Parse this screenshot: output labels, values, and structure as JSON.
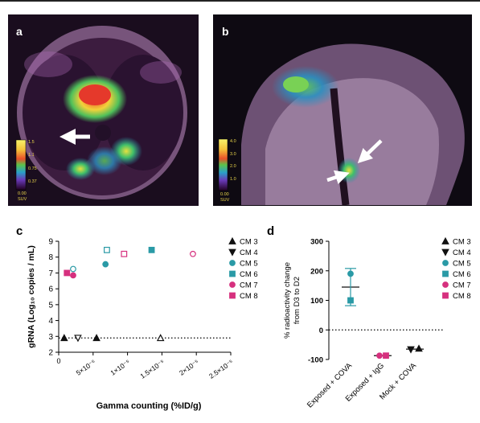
{
  "panels": {
    "a": {
      "letter": "a",
      "colorbar": {
        "ticks": [
          "1.5",
          "1.1",
          "0.75",
          "0.37",
          "0.00"
        ],
        "unit": "SUV"
      }
    },
    "b": {
      "letter": "b",
      "colorbar": {
        "ticks": [
          "4.0",
          "3.0",
          "2.0",
          "1.0",
          "0.00"
        ],
        "unit": "SUV"
      }
    },
    "c": {
      "letter": "c"
    },
    "d": {
      "letter": "d"
    }
  },
  "colors": {
    "cm3": "#111111",
    "cm4": "#111111",
    "cm5": "#2a9aa6",
    "cm6": "#2a9aa6",
    "cm7": "#d6307e",
    "cm8": "#d6307e"
  },
  "chart_data": [
    {
      "panel": "c",
      "type": "scatter",
      "xlabel": "Gamma counting (%ID/g)",
      "ylabel": "gRNA (Log₁₀ copies / mL)",
      "xlim": [
        0,
        2.5e-05
      ],
      "ylim": [
        2,
        9
      ],
      "xticks": [
        {
          "v": 0,
          "label": "0"
        },
        {
          "v": 5e-06,
          "label": "5×10⁻⁶"
        },
        {
          "v": 1e-05,
          "label": "1×10⁻⁵"
        },
        {
          "v": 1.5e-05,
          "label": "1.5×10⁻⁵"
        },
        {
          "v": 2e-05,
          "label": "2×10⁻⁵"
        },
        {
          "v": 2.5e-05,
          "label": "2.5×10⁻⁵"
        }
      ],
      "yticks": [
        2,
        3,
        4,
        5,
        6,
        7,
        8,
        9
      ],
      "reference_line": 2.9,
      "series": [
        {
          "name": "CM 3",
          "marker": "triangle-up",
          "filled": true,
          "color_key": "cm3",
          "points": [
            {
              "x": 8e-07,
              "y": 2.9,
              "filled": true
            },
            {
              "x": 5.5e-06,
              "y": 2.9,
              "filled": true
            },
            {
              "x": 1.48e-05,
              "y": 2.9,
              "filled": false
            }
          ]
        },
        {
          "name": "CM 4",
          "marker": "triangle-down",
          "filled": true,
          "color_key": "cm4",
          "points": [
            {
              "x": 2.8e-06,
              "y": 2.9,
              "filled": false
            }
          ]
        },
        {
          "name": "CM 5",
          "marker": "circle",
          "filled": true,
          "color_key": "cm5",
          "points": [
            {
              "x": 2.1e-06,
              "y": 7.25,
              "filled": false
            },
            {
              "x": 6.8e-06,
              "y": 7.55,
              "filled": true
            }
          ]
        },
        {
          "name": "CM 6",
          "marker": "square",
          "filled": true,
          "color_key": "cm6",
          "points": [
            {
              "x": 7e-06,
              "y": 8.45,
              "filled": false
            },
            {
              "x": 1.35e-05,
              "y": 8.45,
              "filled": true
            }
          ]
        },
        {
          "name": "CM 7",
          "marker": "circle",
          "filled": true,
          "color_key": "cm7",
          "points": [
            {
              "x": 2.1e-06,
              "y": 6.85,
              "filled": true
            },
            {
              "x": 1.95e-05,
              "y": 8.2,
              "filled": false
            }
          ]
        },
        {
          "name": "CM 8",
          "marker": "square",
          "filled": true,
          "color_key": "cm8",
          "points": [
            {
              "x": 1.2e-06,
              "y": 7.0,
              "filled": true
            },
            {
              "x": 9.5e-06,
              "y": 8.2,
              "filled": false
            }
          ]
        }
      ]
    },
    {
      "panel": "d",
      "type": "scatter",
      "ylabel_lines": [
        "% radioactivity change",
        "from D3 to D2"
      ],
      "ylim": [
        -100,
        300
      ],
      "yticks": [
        -100,
        0,
        100,
        200,
        300
      ],
      "reference_line": 0,
      "categories": [
        "Exposed + COVA",
        "Exposed + IgG",
        "Mock + COVA"
      ],
      "group_stats": [
        {
          "category": "Exposed + COVA",
          "mean": 145,
          "err_low": 82,
          "err_high": 208
        },
        {
          "category": "Exposed + IgG",
          "mean": -87,
          "err_low": -87,
          "err_high": -87
        },
        {
          "category": "Mock + COVA",
          "mean": -65,
          "err_low": -65,
          "err_high": -65
        }
      ],
      "series": [
        {
          "name": "CM 3",
          "marker": "triangle-up",
          "color_key": "cm3",
          "points": [
            {
              "category": "Mock + COVA",
              "y": -63
            }
          ]
        },
        {
          "name": "CM 4",
          "marker": "triangle-down",
          "color_key": "cm4",
          "points": [
            {
              "category": "Mock + COVA",
              "y": -66
            }
          ]
        },
        {
          "name": "CM 5",
          "marker": "circle",
          "color_key": "cm5",
          "points": [
            {
              "category": "Exposed + COVA",
              "y": 190
            }
          ]
        },
        {
          "name": "CM 6",
          "marker": "square",
          "color_key": "cm6",
          "points": [
            {
              "category": "Exposed + COVA",
              "y": 100
            }
          ]
        },
        {
          "name": "CM 7",
          "marker": "circle",
          "color_key": "cm7",
          "points": [
            {
              "category": "Exposed + IgG",
              "y": -87
            }
          ]
        },
        {
          "name": "CM 8",
          "marker": "square",
          "color_key": "cm8",
          "points": [
            {
              "category": "Exposed + IgG",
              "y": -87
            }
          ]
        }
      ]
    }
  ]
}
